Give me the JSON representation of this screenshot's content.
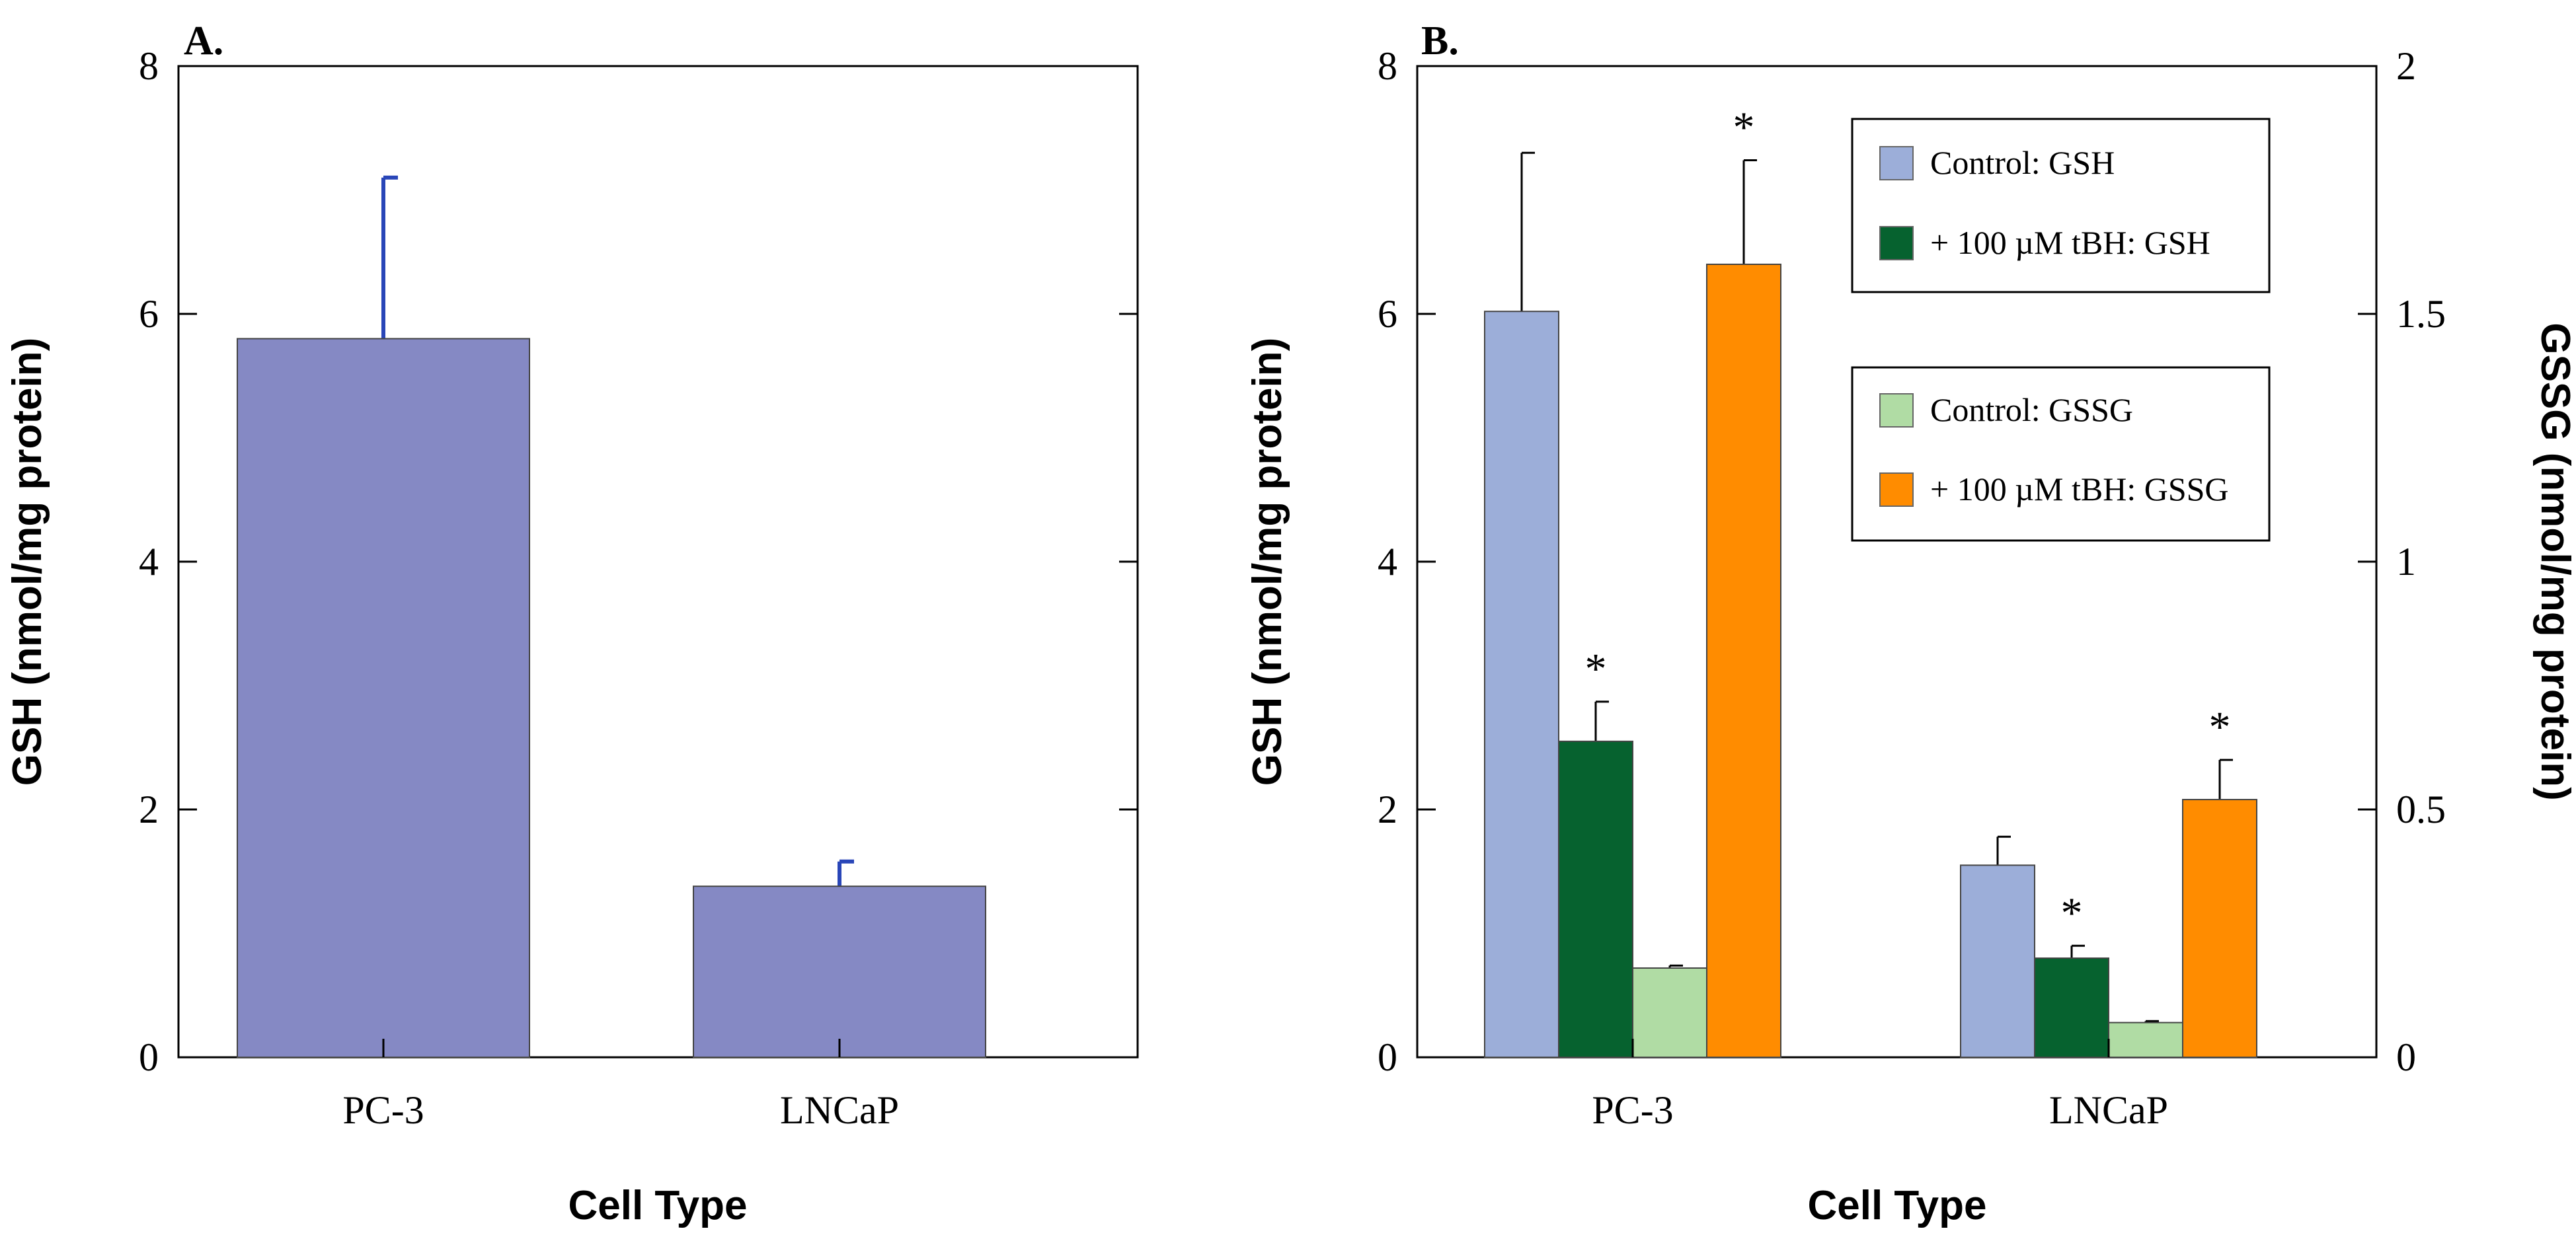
{
  "chart_data": [
    {
      "type": "bar",
      "panel_label": "A.",
      "categories": [
        "PC-3",
        "LNCaP"
      ],
      "series": [
        {
          "name": "GSH",
          "values": [
            5.8,
            1.38
          ],
          "errors": [
            1.3,
            0.2
          ],
          "color": "#8589c4"
        }
      ],
      "xlabel": "Cell Type",
      "ylabel": "GSH (nmol/mg protein)",
      "ylim": [
        0,
        8
      ],
      "yticks": [
        "0",
        "2",
        "4",
        "6",
        "8"
      ],
      "error_color": "#2946b8"
    },
    {
      "type": "bar",
      "panel_label": "B.",
      "categories": [
        "PC-3",
        "LNCaP"
      ],
      "series": [
        {
          "name": "Control: GSH",
          "axis": "left",
          "values": [
            6.02,
            1.55
          ],
          "errors": [
            1.28,
            0.23
          ],
          "color": "#9caed9",
          "stars": [
            false,
            false
          ]
        },
        {
          "name": "+ 100 µM tBH: GSH",
          "axis": "left",
          "values": [
            2.55,
            0.8
          ],
          "errors": [
            0.32,
            0.1
          ],
          "color": "#06622f",
          "stars": [
            true,
            true
          ]
        },
        {
          "name": "Control: GSSG",
          "axis": "right",
          "values": [
            0.18,
            0.07
          ],
          "errors": [
            0.005,
            0.003
          ],
          "color": "#b0dca4",
          "stars": [
            false,
            false
          ]
        },
        {
          "name": "+ 100 µM tBH: GSSG",
          "axis": "right",
          "values": [
            1.6,
            0.52
          ],
          "errors": [
            0.21,
            0.08
          ],
          "color": "#ff8c00",
          "stars": [
            true,
            true
          ]
        }
      ],
      "xlabel": "Cell Type",
      "ylabel": "GSH (nmol/mg protein)",
      "y2label": "GSSG (nmol/mg protein)",
      "ylim": [
        0,
        8
      ],
      "y2lim": [
        0,
        2
      ],
      "yticks": [
        "0",
        "2",
        "4",
        "6",
        "8"
      ],
      "y2ticks": [
        "0",
        "0.5",
        "1",
        "1.5",
        "2"
      ],
      "star_symbol": "*",
      "legend_position": "top-right"
    }
  ]
}
